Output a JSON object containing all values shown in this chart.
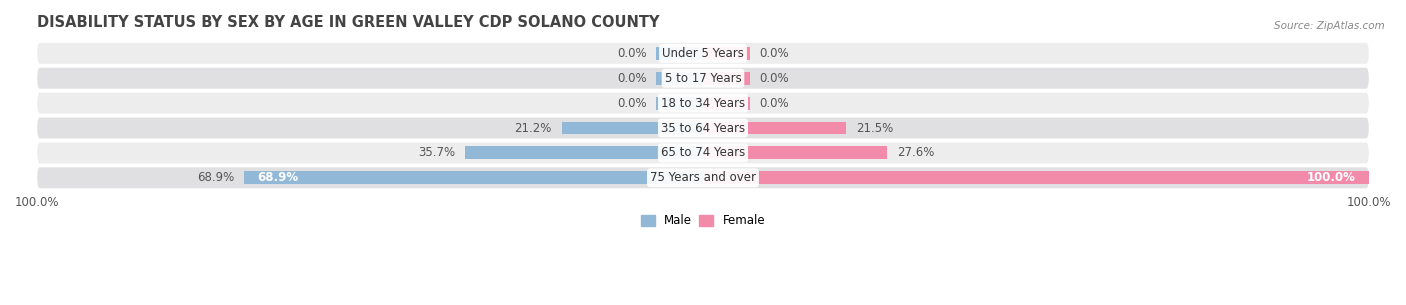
{
  "title": "DISABILITY STATUS BY SEX BY AGE IN GREEN VALLEY CDP SOLANO COUNTY",
  "source": "Source: ZipAtlas.com",
  "categories": [
    "Under 5 Years",
    "5 to 17 Years",
    "18 to 34 Years",
    "35 to 64 Years",
    "65 to 74 Years",
    "75 Years and over"
  ],
  "male_values": [
    0.0,
    0.0,
    0.0,
    21.2,
    35.7,
    68.9
  ],
  "female_values": [
    0.0,
    0.0,
    0.0,
    21.5,
    27.6,
    100.0
  ],
  "male_color": "#92b8d8",
  "female_color": "#f28aaa",
  "male_label": "Male",
  "female_label": "Female",
  "row_bg_color_odd": "#ededee",
  "row_bg_color_even": "#e0e0e2",
  "axis_max": 100.0,
  "title_fontsize": 10.5,
  "label_fontsize": 8.5,
  "value_fontsize": 8.5,
  "tick_fontsize": 8.5,
  "bar_height": 0.52,
  "stub_val": 7.0,
  "title_color": "#444444",
  "source_color": "#888888",
  "value_color": "#555555"
}
